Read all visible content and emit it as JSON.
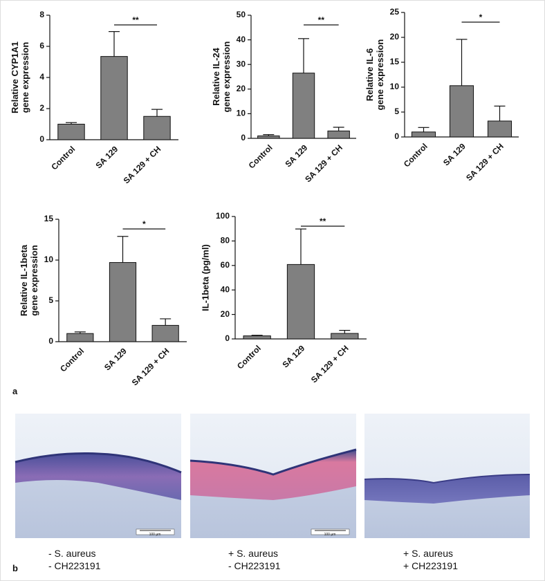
{
  "chart_data": [
    {
      "type": "bar",
      "y_label": [
        "Relative CYP1A1",
        "gene expression"
      ],
      "categories": [
        "Control",
        "SA 129",
        "SA 129 + CH"
      ],
      "values": [
        1.0,
        5.35,
        1.5
      ],
      "errors": [
        0.1,
        1.6,
        0.45
      ],
      "color": "#808080",
      "ylim": [
        0,
        8
      ],
      "yticks": [
        0,
        2,
        4,
        6,
        8
      ],
      "annotation": "**"
    },
    {
      "type": "bar",
      "y_label": [
        "Relative IL-24",
        "gene expression"
      ],
      "categories": [
        "Control",
        "SA 129",
        "SA 129 + CH"
      ],
      "values": [
        1.0,
        26.5,
        3.0
      ],
      "errors": [
        0.5,
        14,
        1.5
      ],
      "color": "#808080",
      "ylim": [
        0,
        50
      ],
      "yticks": [
        0,
        10,
        20,
        30,
        40,
        50
      ],
      "annotation": "**"
    },
    {
      "type": "bar",
      "y_label": [
        "Relative IL-6",
        "gene expression"
      ],
      "categories": [
        "Control",
        "SA 129",
        "SA 129 + CH"
      ],
      "values": [
        1.0,
        10.3,
        3.2
      ],
      "errors": [
        0.9,
        9.3,
        3.0
      ],
      "color": "#808080",
      "ylim": [
        0,
        25
      ],
      "yticks": [
        0,
        5,
        10,
        15,
        20,
        25
      ],
      "annotation": "*"
    },
    {
      "type": "bar",
      "y_label": [
        "Relative IL-1beta",
        "gene expression"
      ],
      "categories": [
        "Control",
        "SA 129",
        "SA 129 + CH"
      ],
      "values": [
        1.0,
        9.7,
        2.0
      ],
      "errors": [
        0.2,
        3.2,
        0.8
      ],
      "color": "#808080",
      "ylim": [
        0,
        15
      ],
      "yticks": [
        0,
        5,
        10,
        15
      ],
      "annotation": "*"
    },
    {
      "type": "bar",
      "y_label": [
        "IL-1beta (pg/ml)"
      ],
      "categories": [
        "Control",
        "SA 129",
        "SA 129 + CH"
      ],
      "values": [
        2.5,
        60.8,
        4.5
      ],
      "errors": [
        0.5,
        29,
        2.5
      ],
      "color": "#808080",
      "ylim": [
        0,
        100
      ],
      "yticks": [
        0,
        20,
        40,
        60,
        80,
        100
      ],
      "annotation": "**"
    }
  ],
  "panel_labels": [
    "a",
    "b"
  ],
  "micrographs": [
    {
      "caption": [
        "- S. aureus",
        "- CH223191"
      ],
      "scale_bar": "100 µm"
    },
    {
      "caption": [
        "+ S. aureus",
        "- CH223191"
      ],
      "scale_bar": "100 µm"
    },
    {
      "caption": [
        "+ S. aureus",
        "+ CH223191"
      ]
    }
  ]
}
